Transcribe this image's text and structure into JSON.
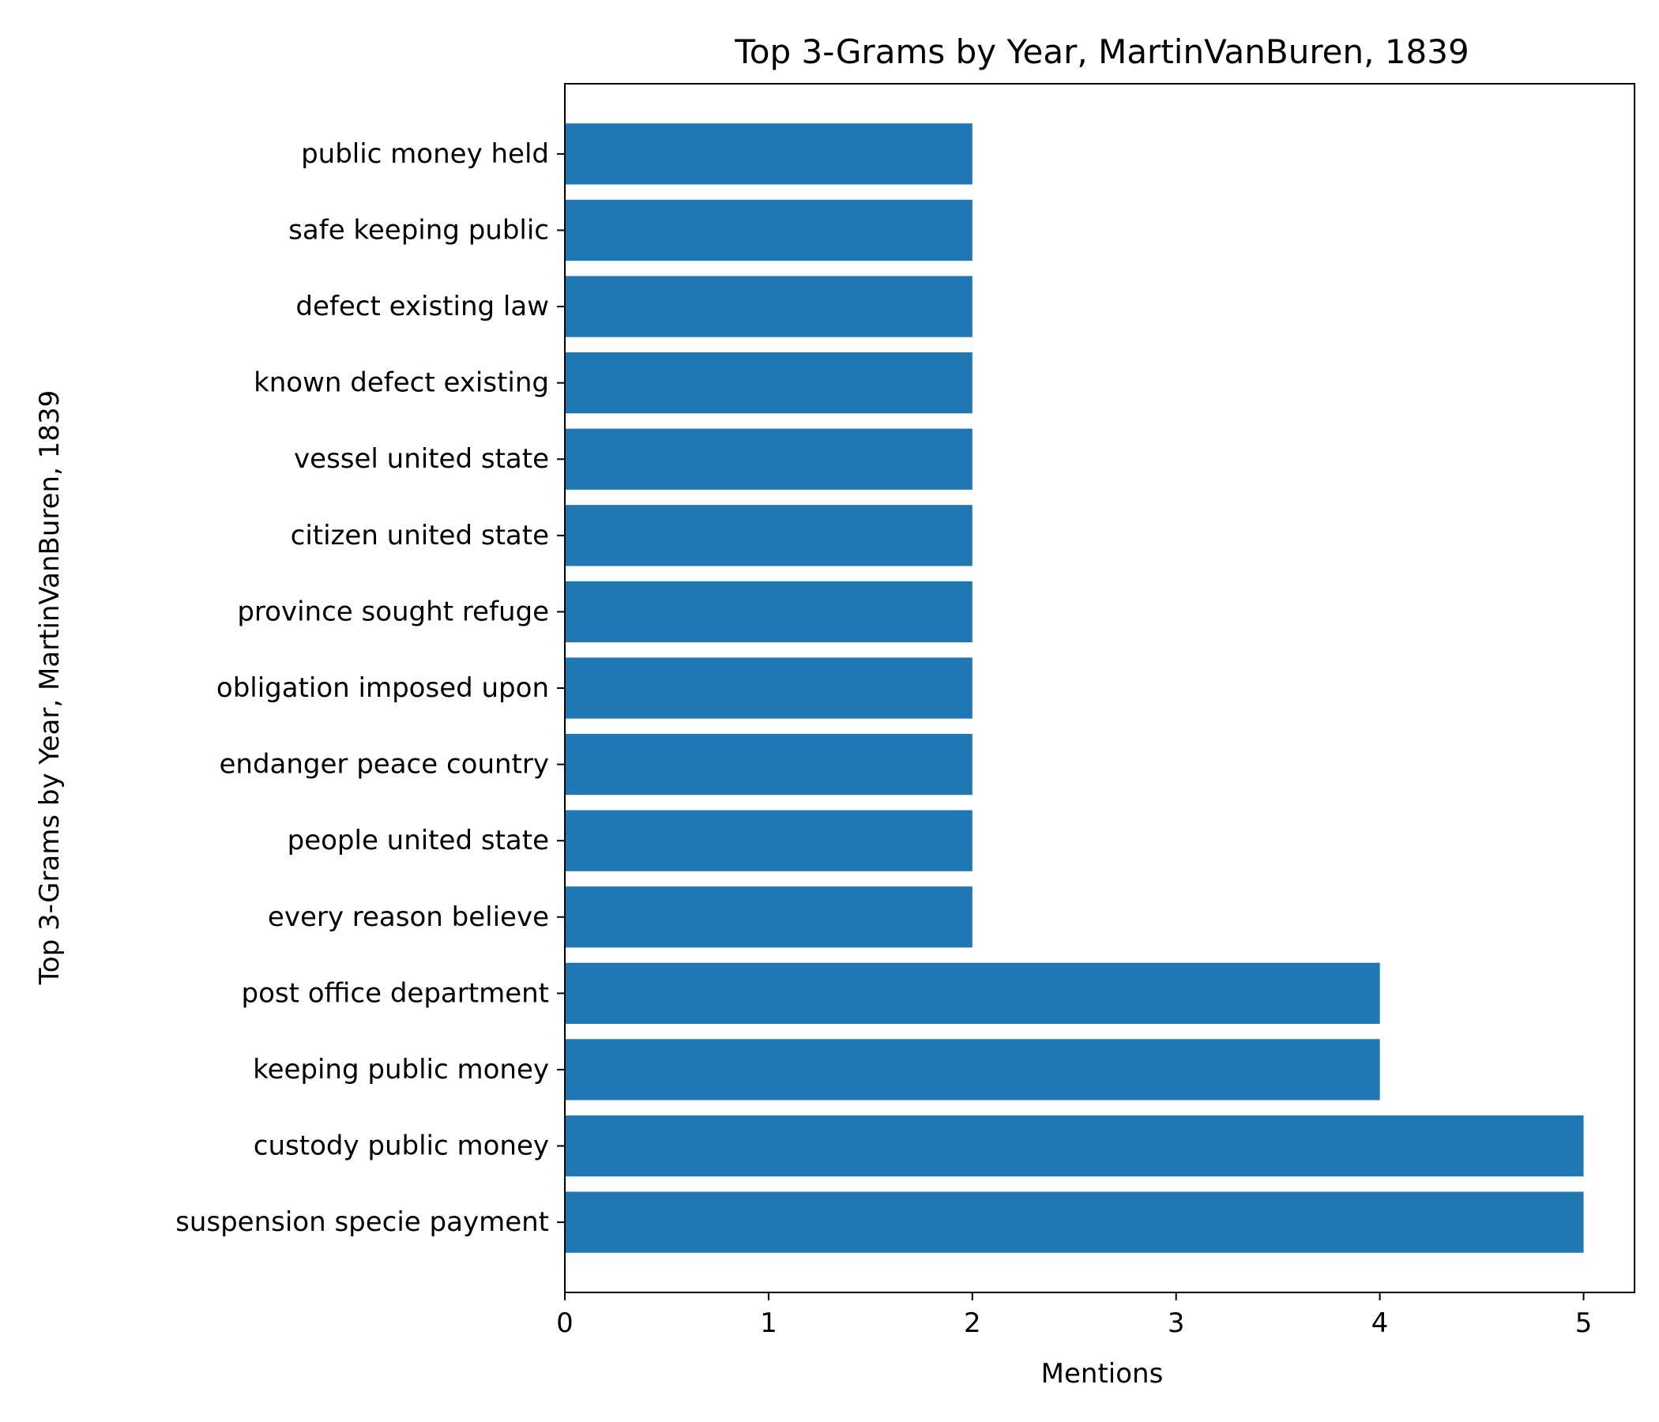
{
  "chart_data": {
    "type": "bar",
    "orientation": "horizontal",
    "title": "Top 3-Grams by Year, MartinVanBuren, 1839",
    "xlabel": "Mentions",
    "ylabel": "Top 3-Grams by Year, MartinVanBuren, 1839",
    "xlim": [
      0,
      5.25
    ],
    "xticks": [
      0,
      1,
      2,
      3,
      4,
      5
    ],
    "grid": false,
    "legend": "none",
    "bar_color": "#1f77b4",
    "categories": [
      "suspension specie payment",
      "custody public money",
      "keeping public money",
      "post office department",
      "every reason believe",
      "people united state",
      "endanger peace country",
      "obligation imposed upon",
      "province sought refuge",
      "citizen united state",
      "vessel united state",
      "known defect existing",
      "defect existing law",
      "safe keeping public",
      "public money held"
    ],
    "values": [
      5,
      5,
      4,
      4,
      2,
      2,
      2,
      2,
      2,
      2,
      2,
      2,
      2,
      2,
      2
    ]
  }
}
